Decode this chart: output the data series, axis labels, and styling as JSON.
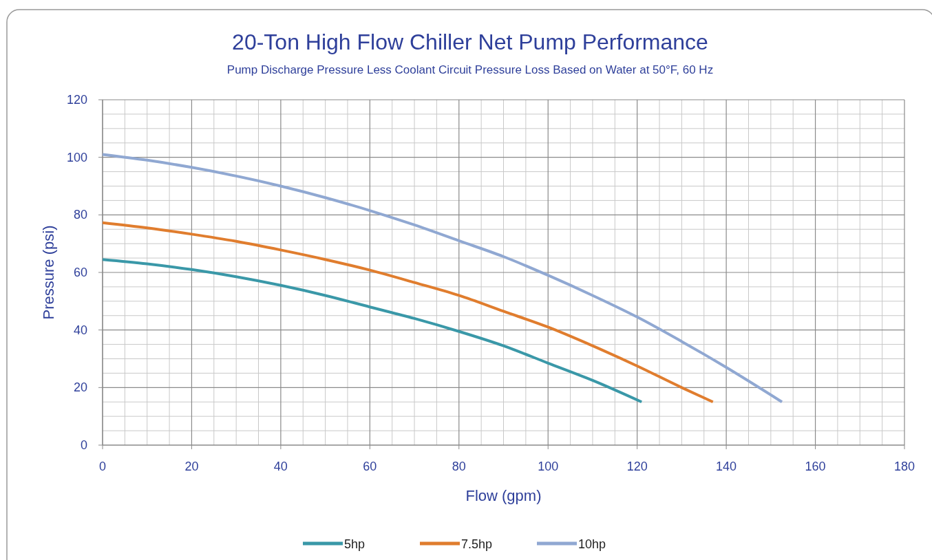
{
  "chart_data": {
    "type": "line",
    "title": "20-Ton High Flow Chiller Net Pump Performance",
    "subtitle": "Pump Discharge Pressure Less Coolant Circuit Pressure Loss Based on Water at 50°F, 60 Hz",
    "xlabel": "Flow (gpm)",
    "ylabel": "Pressure (psi)",
    "xlim": [
      0,
      180
    ],
    "xticks": [
      0,
      20,
      40,
      60,
      80,
      100,
      120,
      140,
      160,
      180
    ],
    "ylim": [
      0,
      120
    ],
    "yticks": [
      0,
      20,
      40,
      60,
      80,
      100,
      120
    ],
    "grid": true,
    "legend": "bottom",
    "marker": "none",
    "line_style": "solid",
    "series": [
      {
        "name": "5hp",
        "color": "#3a98a8",
        "x": [
          0,
          10,
          20,
          30,
          40,
          50,
          60,
          70,
          80,
          90,
          100,
          110,
          121
        ],
        "values": [
          64.5,
          63,
          61,
          58.5,
          55.5,
          52,
          48,
          44,
          39.5,
          34.5,
          28.5,
          22.5,
          15
        ]
      },
      {
        "name": "7.5hp",
        "color": "#e07d2e",
        "x": [
          0,
          10,
          20,
          30,
          40,
          50,
          60,
          70,
          80,
          90,
          100,
          110,
          120,
          130,
          137
        ],
        "values": [
          77.3,
          75.5,
          73.3,
          70.8,
          67.8,
          64.5,
          60.8,
          56.5,
          52,
          46.5,
          41,
          34.5,
          27.5,
          20,
          15
        ]
      },
      {
        "name": "10hp",
        "color": "#90a8d2",
        "x": [
          0,
          10,
          20,
          30,
          40,
          50,
          60,
          70,
          80,
          90,
          100,
          110,
          120,
          130,
          140,
          152.5
        ],
        "values": [
          101,
          99,
          96.5,
          93.5,
          90,
          86,
          81.5,
          76.5,
          71,
          65.5,
          59,
          52,
          44.5,
          36,
          27,
          15
        ]
      }
    ]
  }
}
